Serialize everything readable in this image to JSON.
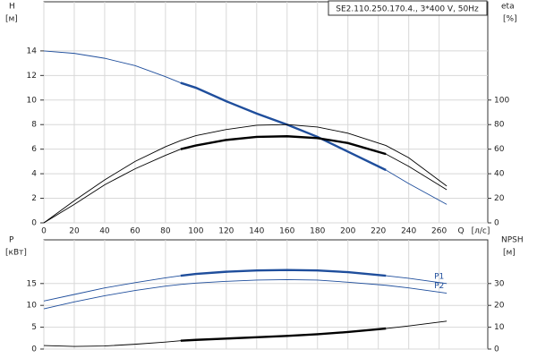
{
  "chart_data": [
    {
      "type": "line",
      "title": "SE2.110.250.170.4., 3*400 V, 50Hz",
      "ylabel": "H",
      "yunit": "[м]",
      "y2label": "eta",
      "y2unit": "[%]",
      "xlabel": "Q",
      "xunit": "[л/с]",
      "x": [
        0,
        20,
        40,
        60,
        80,
        90,
        100,
        120,
        140,
        160,
        180,
        200,
        225,
        240,
        265
      ],
      "xlim": [
        0,
        292
      ],
      "xticks": [
        0,
        20,
        40,
        60,
        80,
        100,
        120,
        140,
        160,
        180,
        200,
        220,
        240,
        260
      ],
      "ylim": [
        0,
        18
      ],
      "yticks": [
        0,
        2,
        4,
        6,
        8,
        10,
        12,
        14
      ],
      "y2lim": [
        0,
        180
      ],
      "y2ticks": [
        0,
        20,
        40,
        60,
        80,
        100
      ],
      "grid": true,
      "duty_range": [
        90,
        225
      ],
      "series": [
        {
          "color": "#1f4e9c",
          "duty": true,
          "values": [
            14,
            13.8,
            13.4,
            12.8,
            11.9,
            11.4,
            11.0,
            9.9,
            8.9,
            8.0,
            7.0,
            5.8,
            4.3,
            3.2,
            1.5
          ]
        },
        {
          "color": "#000000",
          "axis": "y2",
          "duty": false,
          "values": [
            0,
            18,
            35,
            50,
            62,
            67,
            71,
            76,
            79.5,
            80,
            78,
            73,
            63,
            53,
            30
          ]
        },
        {
          "color": "#000000",
          "axis": "y2",
          "duty": true,
          "values": [
            0,
            15,
            31,
            44,
            55,
            60,
            63,
            67.5,
            70,
            70.5,
            69,
            65,
            56,
            46,
            27
          ]
        }
      ]
    },
    {
      "type": "line",
      "ylabel": "P",
      "yunit": "[кВт]",
      "y2label": "NPSH",
      "y2unit": "[м]",
      "x": [
        0,
        20,
        40,
        60,
        80,
        90,
        100,
        120,
        140,
        160,
        180,
        200,
        225,
        240,
        265
      ],
      "xlim": [
        0,
        292
      ],
      "xticks": [
        0,
        20,
        40,
        60,
        80,
        100,
        120,
        140,
        160,
        180,
        200,
        220,
        240,
        260
      ],
      "ylim": [
        0,
        25
      ],
      "yticks": [
        0,
        5,
        10,
        15
      ],
      "y2lim": [
        0,
        50
      ],
      "y2ticks": [
        0,
        10,
        20,
        30
      ],
      "grid": true,
      "duty_range": [
        90,
        225
      ],
      "series": [
        {
          "name": "P1",
          "color": "#1f4e9c",
          "duty": true,
          "values": [
            11,
            12.5,
            14,
            15.2,
            16.3,
            16.8,
            17.2,
            17.7,
            18.0,
            18.1,
            18.0,
            17.6,
            16.8,
            16.2,
            15
          ]
        },
        {
          "name": "P2",
          "color": "#1f4e9c",
          "duty": false,
          "values": [
            9.2,
            10.8,
            12.2,
            13.4,
            14.4,
            14.8,
            15.1,
            15.5,
            15.8,
            15.9,
            15.8,
            15.3,
            14.6,
            14.0,
            12.8
          ]
        },
        {
          "color": "#000000",
          "axis": "y2",
          "duty": true,
          "values": [
            1.6,
            1.2,
            1.4,
            2.2,
            3.2,
            3.8,
            4.2,
            4.8,
            5.4,
            6.0,
            6.8,
            7.8,
            9.4,
            10.6,
            12.8
          ]
        }
      ]
    }
  ]
}
